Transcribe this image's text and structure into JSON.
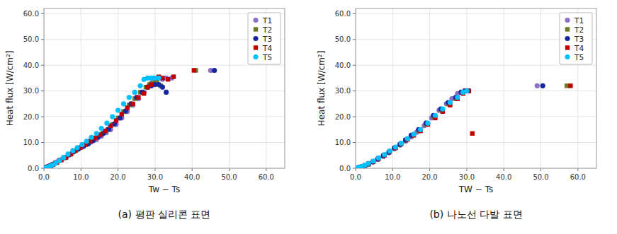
{
  "chart_data": [
    {
      "type": "scatter",
      "title": "(a)  평판 실리콘 표면",
      "xlabel": "Tw − Ts",
      "ylabel": "Heat flux [W/cm²]",
      "xlim": [
        0,
        65
      ],
      "ylim": [
        0,
        62
      ],
      "xticks": [
        {
          "value": 0,
          "label": "0.0"
        },
        {
          "value": 10,
          "label": "10.0"
        },
        {
          "value": 20,
          "label": "20.0"
        },
        {
          "value": 30,
          "label": "30.0"
        },
        {
          "value": 40,
          "label": "40.0"
        },
        {
          "value": 50,
          "label": "50.0"
        },
        {
          "value": 60,
          "label": "60.0"
        }
      ],
      "yticks": [
        {
          "value": 0,
          "label": "0.0"
        },
        {
          "value": 10,
          "label": "10.0"
        },
        {
          "value": 20,
          "label": "20.0"
        },
        {
          "value": 30,
          "label": "30.0"
        },
        {
          "value": 40,
          "label": "40.0"
        },
        {
          "value": 50,
          "label": "50.0"
        },
        {
          "value": 60,
          "label": "60.0"
        }
      ],
      "grid": true,
      "legend": "upper right",
      "series": [
        {
          "name": "T1",
          "color": "#8B6FC6",
          "marker": "circle",
          "x": [
            0.2,
            0.4,
            0.7,
            1.1,
            1.6,
            2.2,
            3.0,
            4.0,
            5.2,
            6.5,
            7.8,
            9.0,
            10.2,
            11.5,
            12.8,
            14.2,
            15.5,
            16.8,
            18.0,
            19.5,
            21.0,
            22.5,
            24.0,
            25.5,
            27.0,
            28.0,
            29.0,
            30.0,
            31.0,
            32.0,
            33.0,
            34.5,
            45.0
          ],
          "values": [
            0.1,
            0.2,
            0.4,
            0.6,
            1.0,
            1.5,
            2.2,
            3.0,
            4.0,
            5.0,
            6.2,
            7.2,
            8.2,
            9.2,
            10.2,
            11.2,
            12.5,
            13.8,
            15.0,
            17.0,
            19.5,
            22.0,
            24.5,
            27.0,
            29.5,
            31.5,
            33.0,
            34.5,
            35.0,
            34.5,
            35.0,
            35.0,
            38.0
          ]
        },
        {
          "name": "T2",
          "color": "#6B7A23",
          "marker": "square",
          "x": [
            0.3,
            0.6,
            1.0,
            1.5,
            2.2,
            3.1,
            4.2,
            5.5,
            6.8,
            8.0,
            9.2,
            10.5,
            11.8,
            13.2,
            14.5,
            15.8,
            17.2,
            18.5,
            20.0,
            21.5,
            23.0,
            24.5,
            26.0,
            27.5,
            28.5,
            29.5,
            30.5,
            31.5,
            41.0
          ],
          "values": [
            0.1,
            0.3,
            0.5,
            0.8,
            1.3,
            2.0,
            3.0,
            4.0,
            5.2,
            6.5,
            7.5,
            8.5,
            9.5,
            10.8,
            12.0,
            13.5,
            15.0,
            17.0,
            19.5,
            22.0,
            24.5,
            27.0,
            29.5,
            31.5,
            32.5,
            33.0,
            33.5,
            32.0,
            38.0
          ]
        },
        {
          "name": "T3",
          "color": "#1428A0",
          "marker": "circle",
          "x": [
            0.3,
            0.6,
            1.0,
            1.6,
            2.3,
            3.2,
            4.3,
            5.5,
            6.8,
            8.0,
            9.3,
            10.7,
            12.0,
            13.3,
            14.7,
            16.0,
            17.5,
            19.0,
            20.5,
            22.0,
            23.5,
            25.0,
            26.5,
            28.0,
            29.0,
            30.0,
            31.0,
            32.0,
            33.0,
            46.0
          ],
          "values": [
            0.1,
            0.3,
            0.5,
            0.9,
            1.4,
            2.1,
            3.1,
            4.1,
            5.3,
            6.5,
            7.5,
            8.5,
            9.5,
            10.8,
            12.2,
            13.5,
            15.2,
            17.2,
            19.5,
            22.2,
            25.0,
            27.5,
            29.5,
            31.5,
            32.0,
            32.5,
            32.5,
            31.5,
            29.5,
            38.0
          ]
        },
        {
          "name": "T4",
          "color": "#C00000",
          "marker": "square",
          "x": [
            0.4,
            0.8,
            1.2,
            1.8,
            2.5,
            3.5,
            4.7,
            6.0,
            7.3,
            8.5,
            9.8,
            11.2,
            12.5,
            13.8,
            15.2,
            16.5,
            18.0,
            19.5,
            21.0,
            22.5,
            24.0,
            25.5,
            27.0,
            28.0,
            29.0,
            30.0,
            31.0,
            32.0,
            33.5,
            35.0,
            40.5
          ],
          "values": [
            0.1,
            0.3,
            0.6,
            0.9,
            1.5,
            2.2,
            3.2,
            4.2,
            5.5,
            6.8,
            8.0,
            9.2,
            10.5,
            11.8,
            13.0,
            14.5,
            16.5,
            18.5,
            21.0,
            23.5,
            25.0,
            27.5,
            29.0,
            31.5,
            32.5,
            35.0,
            35.5,
            35.0,
            34.5,
            35.5,
            38.0
          ]
        },
        {
          "name": "T5",
          "color": "#00BFFF",
          "marker": "circle",
          "x": [
            0.5,
            1.0,
            1.6,
            2.3,
            3.2,
            4.2,
            5.3,
            6.5,
            7.8,
            9.0,
            10.3,
            11.5,
            12.8,
            14.2,
            15.5,
            17.0,
            18.5,
            20.0,
            21.5,
            23.0,
            24.5,
            26.0,
            27.0,
            28.0,
            29.0,
            30.0,
            31.0
          ],
          "values": [
            0.2,
            0.4,
            0.8,
            1.3,
            2.0,
            3.0,
            4.2,
            5.5,
            6.8,
            8.0,
            9.2,
            10.5,
            12.0,
            13.5,
            15.5,
            17.5,
            20.0,
            22.5,
            25.0,
            27.5,
            29.5,
            32.0,
            34.5,
            35.0,
            35.0,
            35.0,
            35.0
          ]
        }
      ]
    },
    {
      "type": "scatter",
      "title": "(b)  나노선 다발 표면",
      "xlabel": "TW − Ts",
      "ylabel": "Heat flux [W/cm²]",
      "xlim": [
        0,
        65
      ],
      "ylim": [
        0,
        62
      ],
      "xticks": [
        {
          "value": 0,
          "label": "0.0"
        },
        {
          "value": 10,
          "label": "10.0"
        },
        {
          "value": 20,
          "label": "20.0"
        },
        {
          "value": 30,
          "label": "30.0"
        },
        {
          "value": 40,
          "label": "40.0"
        },
        {
          "value": 50,
          "label": "50.0"
        },
        {
          "value": 60,
          "label": "60.0"
        }
      ],
      "yticks": [
        {
          "value": 0,
          "label": "0.0"
        },
        {
          "value": 10,
          "label": "10.0"
        },
        {
          "value": 20,
          "label": "20.0"
        },
        {
          "value": 30,
          "label": "30.0"
        },
        {
          "value": 40,
          "label": "40.0"
        },
        {
          "value": 50,
          "label": "50.0"
        },
        {
          "value": 60,
          "label": "60.0"
        }
      ],
      "grid": true,
      "legend": "upper right",
      "series": [
        {
          "name": "T1",
          "color": "#8B6FC6",
          "marker": "circle",
          "x": [
            0.5,
            1.0,
            1.7,
            2.5,
            3.5,
            4.7,
            6.0,
            7.5,
            9.0,
            10.5,
            12.0,
            13.5,
            15.0,
            16.5,
            18.5,
            20.5,
            22.5,
            24.5,
            26.0,
            27.5,
            28.5,
            29.5,
            30.0,
            49.0
          ],
          "values": [
            0.1,
            0.3,
            0.6,
            1.0,
            1.6,
            2.4,
            3.4,
            4.6,
            6.0,
            7.5,
            9.0,
            10.5,
            12.2,
            14.0,
            16.5,
            19.5,
            22.5,
            25.0,
            27.0,
            29.0,
            29.5,
            30.0,
            30.0,
            32.0
          ]
        },
        {
          "name": "T2",
          "color": "#6B7A23",
          "marker": "square",
          "x": [
            0.5,
            1.0,
            1.7,
            2.5,
            3.5,
            4.7,
            6.0,
            7.5,
            9.0,
            10.5,
            12.0,
            13.5,
            15.0,
            17.0,
            19.0,
            21.0,
            23.0,
            25.0,
            27.0,
            28.5,
            29.5,
            30.5,
            57.0
          ],
          "values": [
            0.1,
            0.3,
            0.6,
            1.0,
            1.6,
            2.5,
            3.5,
            4.8,
            6.2,
            7.8,
            9.2,
            10.8,
            12.5,
            14.5,
            17.0,
            20.0,
            22.5,
            25.0,
            27.0,
            29.5,
            30.0,
            30.0,
            32.0
          ]
        },
        {
          "name": "T3",
          "color": "#1428A0",
          "marker": "circle",
          "x": [
            0.5,
            1.0,
            1.7,
            2.5,
            3.5,
            4.7,
            6.0,
            7.5,
            9.0,
            10.5,
            12.0,
            13.5,
            15.0,
            17.0,
            19.0,
            21.0,
            23.0,
            25.0,
            27.0,
            28.5,
            29.5,
            30.5,
            50.5
          ],
          "values": [
            0.1,
            0.3,
            0.6,
            1.0,
            1.7,
            2.5,
            3.6,
            4.9,
            6.3,
            7.9,
            9.3,
            11.0,
            12.8,
            15.0,
            17.5,
            20.5,
            23.0,
            25.5,
            27.5,
            29.5,
            30.0,
            30.0,
            32.0
          ]
        },
        {
          "name": "T4",
          "color": "#C00000",
          "marker": "square",
          "x": [
            0.5,
            1.0,
            1.7,
            2.5,
            3.5,
            4.8,
            6.2,
            7.8,
            9.2,
            10.8,
            12.3,
            14.0,
            15.7,
            17.5,
            19.5,
            21.5,
            23.5,
            25.5,
            27.5,
            29.0,
            30.5,
            31.5,
            58.0
          ],
          "values": [
            0.1,
            0.3,
            0.6,
            1.1,
            1.8,
            2.7,
            3.8,
            5.1,
            6.5,
            8.0,
            9.5,
            11.2,
            12.8,
            14.5,
            17.0,
            19.5,
            22.0,
            24.5,
            27.0,
            29.0,
            30.0,
            13.5,
            32.0
          ]
        },
        {
          "name": "T5",
          "color": "#00BFFF",
          "marker": "circle",
          "x": [
            0.5,
            1.0,
            1.7,
            2.5,
            3.5,
            4.8,
            6.2,
            7.8,
            9.2,
            10.8,
            12.3,
            14.0,
            15.7,
            17.5,
            19.5,
            21.5,
            23.5,
            25.5,
            27.5,
            29.0,
            30.0
          ],
          "values": [
            0.2,
            0.4,
            0.7,
            1.2,
            1.9,
            2.8,
            4.0,
            5.3,
            6.7,
            8.2,
            9.7,
            11.5,
            13.2,
            15.0,
            17.5,
            20.5,
            23.0,
            25.5,
            27.5,
            29.5,
            30.0
          ]
        }
      ]
    }
  ]
}
